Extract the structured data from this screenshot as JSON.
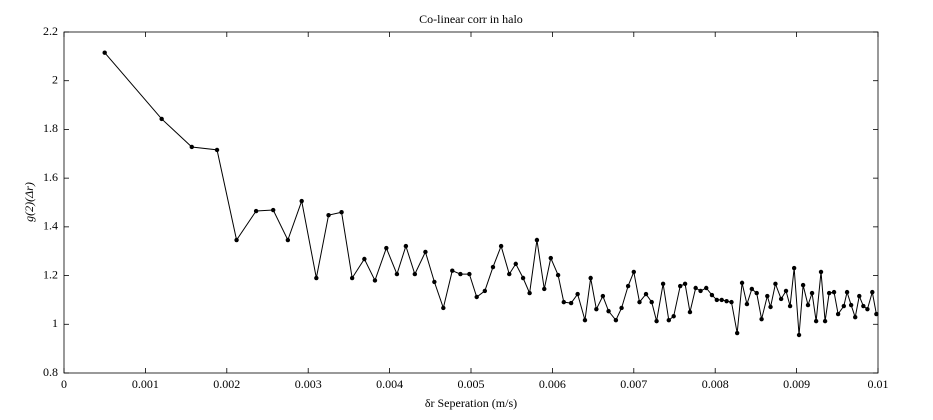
{
  "chart_data": {
    "type": "line",
    "title": "Co-linear corr in halo",
    "xlabel": "δr Seperation (m/s)",
    "ylabel": "g(2)(Δr)",
    "xlim": [
      0,
      0.01
    ],
    "ylim": [
      0.8,
      2.2
    ],
    "xticks": [
      0,
      0.001,
      0.002,
      0.003,
      0.004,
      0.005,
      0.006,
      0.007,
      0.008,
      0.009,
      0.01
    ],
    "yticks": [
      0.8,
      1,
      1.2,
      1.4,
      1.6,
      1.8,
      2,
      2.2
    ],
    "grid": false,
    "series": [
      {
        "color": "#000000",
        "x": [
          0.0005,
          0.0012,
          0.00157,
          0.00188,
          0.00212,
          0.00236,
          0.00257,
          0.00275,
          0.00292,
          0.0031,
          0.00325,
          0.00341,
          0.00354,
          0.00369,
          0.00382,
          0.00396,
          0.00409,
          0.0042,
          0.00431,
          0.00444,
          0.00455,
          0.00466,
          0.00477,
          0.00487,
          0.00498,
          0.00507,
          0.00517,
          0.00527,
          0.00537,
          0.00547,
          0.00555,
          0.00564,
          0.00572,
          0.00581,
          0.0059,
          0.00598,
          0.00607,
          0.00614,
          0.00623,
          0.00631,
          0.0064,
          0.00647,
          0.00654,
          0.00662,
          0.00669,
          0.00678,
          0.00685,
          0.00693,
          0.007,
          0.00707,
          0.00715,
          0.00722,
          0.00728,
          0.00736,
          0.00743,
          0.00749,
          0.00757,
          0.00763,
          0.00769,
          0.00776,
          0.00782,
          0.00789,
          0.00796,
          0.00802,
          0.00808,
          0.00814,
          0.0082,
          0.00827,
          0.00833,
          0.00839,
          0.00845,
          0.00851,
          0.00857,
          0.00864,
          0.00868,
          0.00874,
          0.00881,
          0.00887,
          0.00892,
          0.00897,
          0.00903,
          0.00908,
          0.00914,
          0.00919,
          0.00924,
          0.0093,
          0.00935,
          0.0094,
          0.00946,
          0.00951,
          0.00958,
          0.00962,
          0.00967,
          0.00972,
          0.00977,
          0.00982,
          0.00987,
          0.00993,
          0.00998
        ],
        "values": [
          2.115,
          1.843,
          1.728,
          1.716,
          1.346,
          1.465,
          1.469,
          1.346,
          1.506,
          1.19,
          1.448,
          1.46,
          1.19,
          1.268,
          1.18,
          1.313,
          1.206,
          1.321,
          1.206,
          1.297,
          1.174,
          1.067,
          1.22,
          1.206,
          1.206,
          1.112,
          1.137,
          1.235,
          1.321,
          1.206,
          1.248,
          1.19,
          1.128,
          1.346,
          1.145,
          1.272,
          1.202,
          1.091,
          1.087,
          1.124,
          1.017,
          1.19,
          1.062,
          1.116,
          1.054,
          1.017,
          1.067,
          1.157,
          1.215,
          1.091,
          1.124,
          1.091,
          1.013,
          1.166,
          1.017,
          1.033,
          1.157,
          1.166,
          1.05,
          1.149,
          1.137,
          1.149,
          1.12,
          1.1,
          1.1,
          1.095,
          1.091,
          0.964,
          1.17,
          1.083,
          1.145,
          1.128,
          1.021,
          1.116,
          1.071,
          1.166,
          1.104,
          1.137,
          1.075,
          1.231,
          0.956,
          1.161,
          1.079,
          1.128,
          1.013,
          1.215,
          1.013,
          1.128,
          1.132,
          1.042,
          1.075,
          1.132,
          1.079,
          1.029,
          1.116,
          1.075,
          1.062,
          1.132,
          1.042
        ]
      }
    ]
  }
}
